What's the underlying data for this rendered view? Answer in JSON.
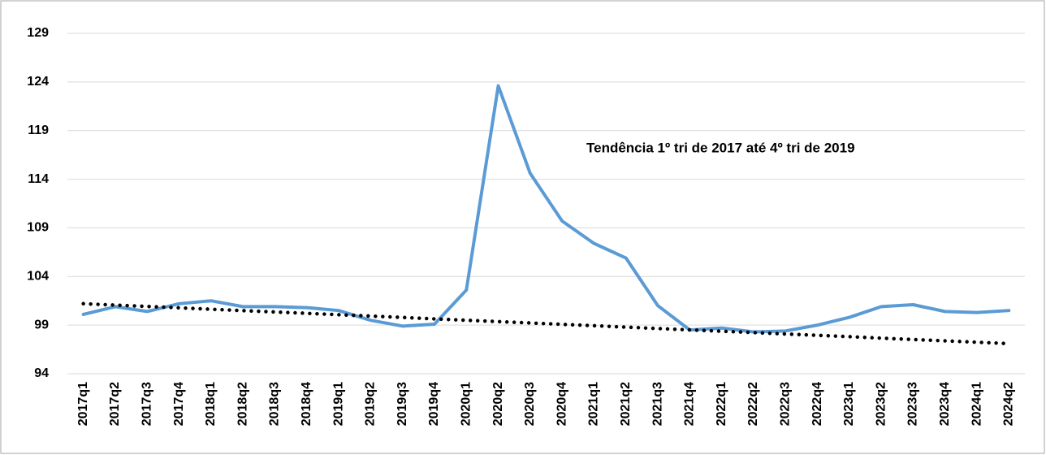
{
  "chart_data": {
    "type": "line",
    "categories": [
      "2017q1",
      "2017q2",
      "2017q3",
      "2017q4",
      "2018q1",
      "2018q2",
      "2018q3",
      "2018q4",
      "2019q1",
      "2019q2",
      "2019q3",
      "2019q4",
      "2020q1",
      "2020q2",
      "2020q3",
      "2020q4",
      "2021q1",
      "2021q2",
      "2021q3",
      "2021q4",
      "2022q1",
      "2022q2",
      "2022q3",
      "2022q4",
      "2023q1",
      "2023q2",
      "2023q3",
      "2023q4",
      "2024q1",
      "2024q2"
    ],
    "series": [
      {
        "color": "#5b9bd5",
        "style": "solid",
        "values": [
          100.1,
          100.9,
          100.4,
          101.2,
          101.5,
          100.9,
          100.9,
          100.8,
          100.5,
          99.5,
          98.9,
          99.1,
          102.6,
          123.6,
          114.6,
          109.7,
          107.4,
          105.9,
          101.0,
          98.5,
          98.7,
          98.3,
          98.4,
          99.0,
          99.8,
          100.9,
          101.1,
          100.4,
          100.3,
          100.5
        ]
      },
      {
        "color": "#000000",
        "style": "dotted",
        "values": [
          101.2,
          101.06,
          100.92,
          100.78,
          100.63,
          100.49,
          100.35,
          100.21,
          100.07,
          99.93,
          99.79,
          99.64,
          99.5,
          99.36,
          99.22,
          99.08,
          98.94,
          98.79,
          98.65,
          98.51,
          98.37,
          98.23,
          98.09,
          97.95,
          97.81,
          97.66,
          97.52,
          97.38,
          97.24,
          97.1
        ]
      }
    ],
    "annotation": "Tendência 1º tri de 2017 até 4º tri de 2019",
    "ylim": [
      94,
      129
    ],
    "yticks": [
      94,
      99,
      104,
      109,
      114,
      119,
      124,
      129
    ],
    "grid": true
  }
}
